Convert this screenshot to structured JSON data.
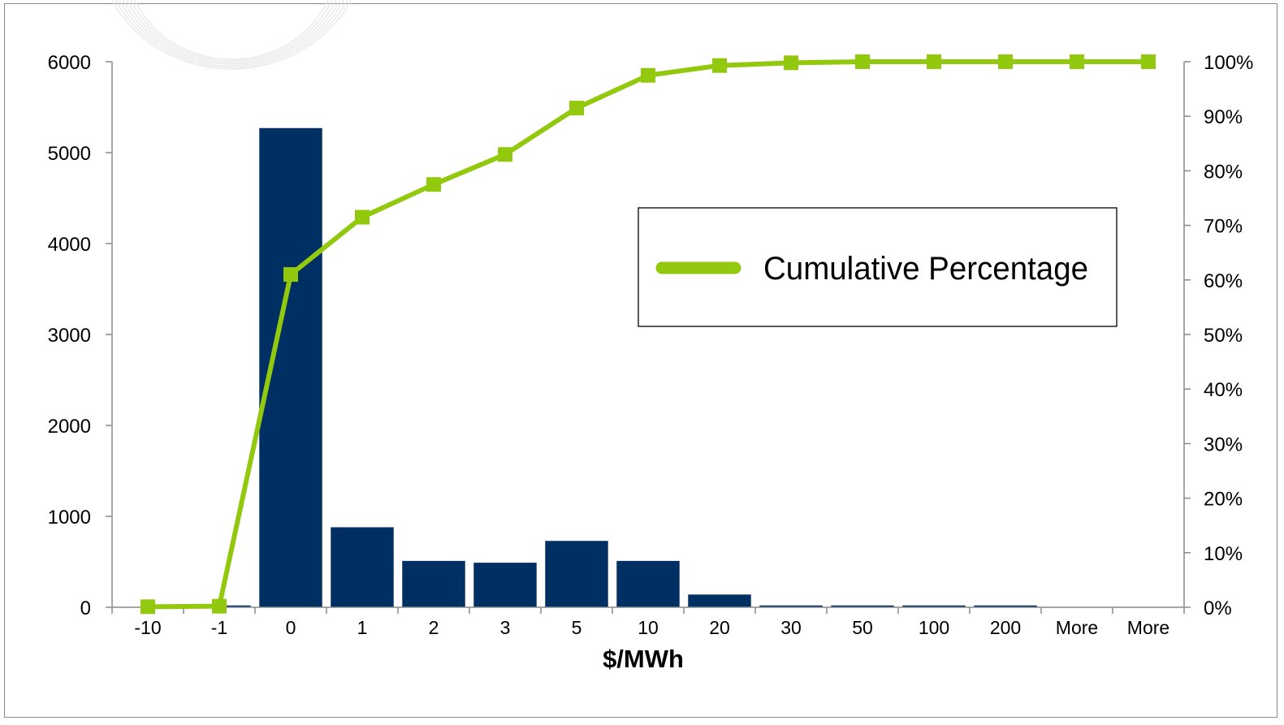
{
  "chart_data": {
    "type": "bar",
    "categories": [
      "-10",
      "-1",
      "0",
      "1",
      "2",
      "3",
      "5",
      "10",
      "20",
      "30",
      "50",
      "100",
      "200",
      "More",
      "More"
    ],
    "series": [
      {
        "type": "bar",
        "axis": "left",
        "color": "#002F63",
        "values": [
          0,
          20,
          5270,
          880,
          510,
          490,
          730,
          510,
          140,
          20,
          20,
          20,
          20,
          0,
          0
        ]
      },
      {
        "name": "Cumulative Percentage",
        "type": "line",
        "axis": "right",
        "color": "#92C90E",
        "marker": "square",
        "values": [
          0.001,
          0.002,
          0.61,
          0.715,
          0.775,
          0.83,
          0.915,
          0.975,
          0.993,
          0.998,
          1.0,
          1.0,
          1.0,
          1.0,
          1.0
        ]
      }
    ],
    "xlabel": "$/MWh",
    "ylabel": "",
    "y_left": {
      "min": 0,
      "max": 6000,
      "ticks": [
        0,
        1000,
        2000,
        3000,
        4000,
        5000,
        6000
      ]
    },
    "y_right": {
      "min": 0,
      "max": 1,
      "ticks": [
        0,
        0.1,
        0.2,
        0.3,
        0.4,
        0.5,
        0.6,
        0.7,
        0.8,
        0.9,
        1.0
      ],
      "tick_labels": [
        "0%",
        "10%",
        "20%",
        "30%",
        "40%",
        "50%",
        "60%",
        "70%",
        "80%",
        "90%",
        "100%"
      ]
    },
    "grid": false,
    "legend": {
      "position": "middle-right",
      "entries": [
        "Cumulative Percentage"
      ]
    }
  }
}
